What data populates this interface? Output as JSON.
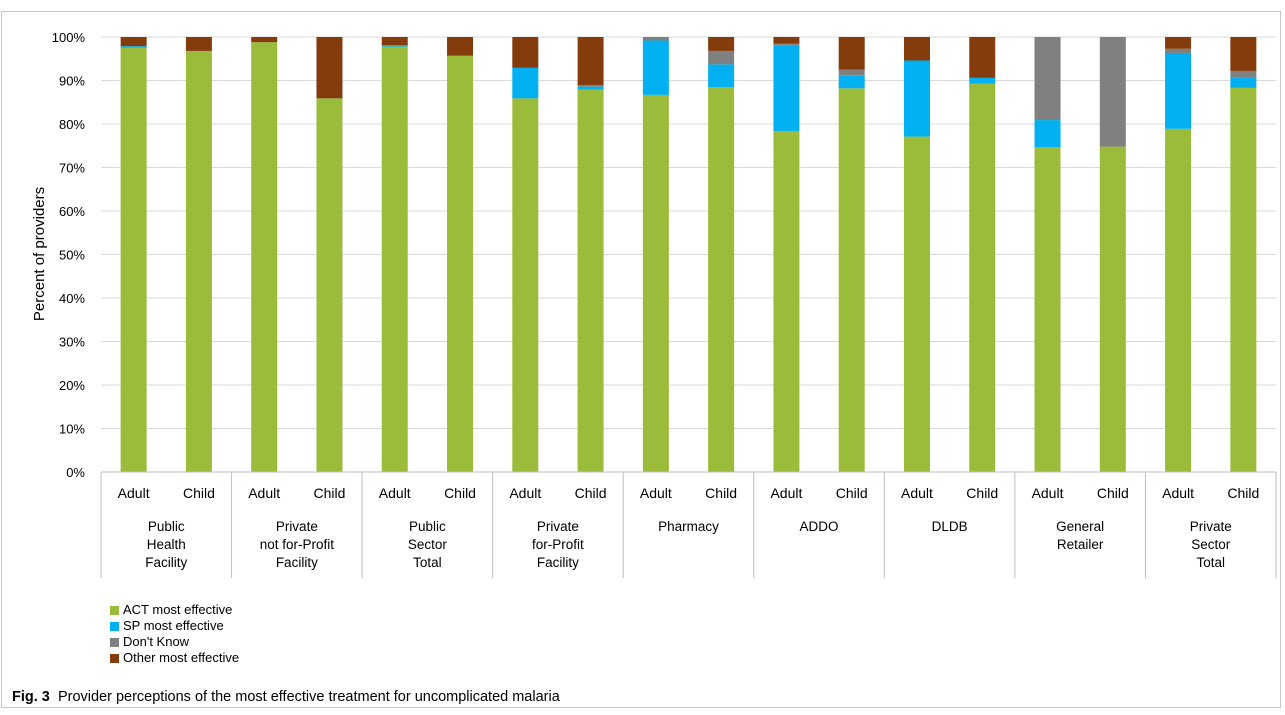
{
  "chart_data": {
    "type": "bar",
    "stacked": true,
    "ylabel": "Percent of providers",
    "ylim": [
      0,
      100
    ],
    "yticks": [
      "0%",
      "10%",
      "20%",
      "30%",
      "40%",
      "50%",
      "60%",
      "70%",
      "80%",
      "90%",
      "100%"
    ],
    "grid": true,
    "legend_position": "bottom-left",
    "groups": [
      {
        "label": [
          "Public",
          "Health",
          "Facility"
        ],
        "categories": [
          "Adult",
          "Child"
        ]
      },
      {
        "label": [
          "Private",
          "not for-Profit",
          "Facility"
        ],
        "categories": [
          "Adult",
          "Child"
        ]
      },
      {
        "label": [
          "Public",
          "Sector",
          "Total"
        ],
        "categories": [
          "Adult",
          "Child"
        ]
      },
      {
        "label": [
          "Private",
          "for-Profit",
          "Facility"
        ],
        "categories": [
          "Adult",
          "Child"
        ]
      },
      {
        "label": [
          "Pharmacy"
        ],
        "categories": [
          "Adult",
          "Child"
        ]
      },
      {
        "label": [
          "ADDO"
        ],
        "categories": [
          "Adult",
          "Child"
        ]
      },
      {
        "label": [
          "DLDB"
        ],
        "categories": [
          "Adult",
          "Child"
        ]
      },
      {
        "label": [
          "General",
          "Retailer"
        ],
        "categories": [
          "Adult",
          "Child"
        ]
      },
      {
        "label": [
          "Private",
          "Sector",
          "Total"
        ],
        "categories": [
          "Adult",
          "Child"
        ]
      }
    ],
    "series": [
      {
        "name": "ACT most effective",
        "color": "#9bbb3b",
        "values": [
          97.5,
          96.8,
          98.8,
          85.9,
          97.8,
          95.7,
          85.9,
          87.9,
          86.7,
          88.5,
          78.4,
          88.2,
          77.1,
          89.3,
          74.7,
          74.8,
          78.9,
          88.3
        ]
      },
      {
        "name": "SP most effective",
        "color": "#00b0f0",
        "values": [
          0.4,
          0,
          0,
          0,
          0.3,
          0,
          7.0,
          0.7,
          12.5,
          5.2,
          19.6,
          2.9,
          17.5,
          1.3,
          6.2,
          0,
          17.3,
          2.3
        ]
      },
      {
        "name": "Don't Know",
        "color": "#808080",
        "values": [
          0,
          0,
          0,
          0,
          0,
          0,
          0,
          0.3,
          0.8,
          3.1,
          0.5,
          1.4,
          0,
          0,
          19.1,
          25.2,
          1.1,
          1.6
        ]
      },
      {
        "name": "Other most effective",
        "color": "#843c0c",
        "values": [
          2.1,
          3.2,
          1.2,
          14.1,
          1.9,
          4.3,
          7.1,
          11.1,
          0,
          3.2,
          1.5,
          7.5,
          5.4,
          9.4,
          0,
          0,
          2.7,
          7.8
        ]
      }
    ]
  },
  "caption": {
    "fig_label": "Fig. 3",
    "text": "Provider perceptions of the most effective treatment for uncomplicated malaria"
  }
}
